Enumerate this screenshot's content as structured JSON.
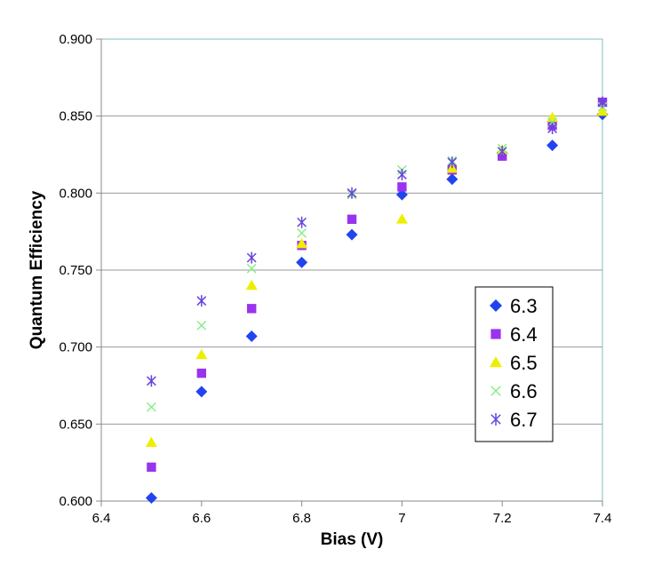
{
  "chart_data": {
    "type": "scatter",
    "title": "",
    "xlabel": "Bias (V)",
    "ylabel": "Quantum Efficiency",
    "xlim": [
      6.4,
      7.4
    ],
    "ylim": [
      0.6,
      0.9
    ],
    "x_ticks": [
      "6.4",
      "6.6",
      "6.8",
      "7",
      "7.2",
      "7.4"
    ],
    "y_ticks": [
      "0.600",
      "0.650",
      "0.700",
      "0.750",
      "0.800",
      "0.850",
      "0.900"
    ],
    "grid": "horizontal",
    "legend_position": "right",
    "series": [
      {
        "name": "6.3",
        "marker": "diamond",
        "color": "#2244ee",
        "points": [
          [
            6.5,
            0.602
          ],
          [
            6.6,
            0.671
          ],
          [
            6.7,
            0.707
          ],
          [
            6.8,
            0.755
          ],
          [
            6.9,
            0.773
          ],
          [
            7.0,
            0.799
          ],
          [
            7.1,
            0.809
          ],
          [
            7.2,
            0.826
          ],
          [
            7.3,
            0.831
          ],
          [
            7.4,
            0.851
          ]
        ]
      },
      {
        "name": "6.4",
        "marker": "square",
        "color": "#9933ee",
        "points": [
          [
            6.5,
            0.622
          ],
          [
            6.6,
            0.683
          ],
          [
            6.7,
            0.725
          ],
          [
            6.8,
            0.766
          ],
          [
            6.9,
            0.783
          ],
          [
            7.0,
            0.804
          ],
          [
            7.1,
            0.815
          ],
          [
            7.2,
            0.824
          ],
          [
            7.3,
            0.844
          ],
          [
            7.4,
            0.859
          ]
        ]
      },
      {
        "name": "6.5",
        "marker": "triangle",
        "color": "#eeee00",
        "points": [
          [
            6.5,
            0.638
          ],
          [
            6.6,
            0.695
          ],
          [
            6.7,
            0.74
          ],
          [
            6.8,
            0.767
          ],
          [
            7.0,
            0.783
          ],
          [
            7.1,
            0.816
          ],
          [
            7.2,
            0.828
          ],
          [
            7.3,
            0.849
          ],
          [
            7.4,
            0.853
          ]
        ]
      },
      {
        "name": "6.6",
        "marker": "x",
        "color": "#88ee88",
        "points": [
          [
            6.5,
            0.661
          ],
          [
            6.6,
            0.714
          ],
          [
            6.7,
            0.751
          ],
          [
            6.8,
            0.774
          ],
          [
            6.9,
            0.799
          ],
          [
            7.0,
            0.815
          ],
          [
            7.1,
            0.821
          ],
          [
            7.2,
            0.829
          ],
          [
            7.3,
            0.846
          ],
          [
            7.4,
            0.856
          ]
        ]
      },
      {
        "name": "6.7",
        "marker": "star",
        "color": "#6644dd",
        "points": [
          [
            6.5,
            0.678
          ],
          [
            6.6,
            0.73
          ],
          [
            6.7,
            0.758
          ],
          [
            6.8,
            0.781
          ],
          [
            6.9,
            0.8
          ],
          [
            7.0,
            0.812
          ],
          [
            7.1,
            0.82
          ],
          [
            7.2,
            0.827
          ],
          [
            7.3,
            0.842
          ],
          [
            7.4,
            0.859
          ]
        ]
      }
    ]
  },
  "colors": {
    "plot_border": "#7fbfbf",
    "gridline": "#999999",
    "axis": "#888888"
  }
}
